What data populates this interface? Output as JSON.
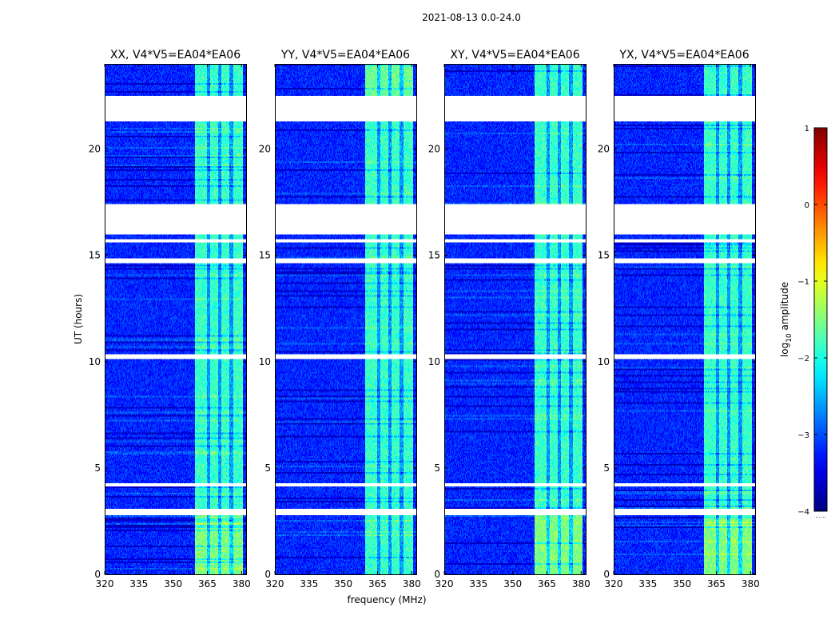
{
  "figure": {
    "suptitle": "2021-08-13 0.0-24.0",
    "xlabel": "frequency (MHz)",
    "ylabel": "UT (hours)",
    "colorbar_label_prefix": "log",
    "colorbar_label_sub": "10",
    "colorbar_label_suffix": " amplitude",
    "colorbar_footer": "......"
  },
  "chart_data": {
    "type": "heatmap",
    "panels": [
      {
        "title": "XX, V4*V5=EA04*EA06",
        "polarization": "XX",
        "show_ylabel": true,
        "show_xlabel": false
      },
      {
        "title": "YY, V4*V5=EA04*EA06",
        "polarization": "YY",
        "show_ylabel": false,
        "show_xlabel": true
      },
      {
        "title": "XY, V4*V5=EA04*EA06",
        "polarization": "XY",
        "show_ylabel": false,
        "show_xlabel": false
      },
      {
        "title": "YX, V4*V5=EA04*EA06",
        "polarization": "YX",
        "show_ylabel": false,
        "show_xlabel": false
      }
    ],
    "x_range": [
      320,
      382
    ],
    "x_ticks": [
      320,
      335,
      350,
      365,
      380
    ],
    "y_range": [
      0,
      24
    ],
    "y_ticks": [
      0,
      5,
      10,
      15,
      20
    ],
    "rfi_band_mhz": [
      359.5,
      380.5
    ],
    "rfi_subchannel_gaps_mhz": [
      365.5,
      370.5,
      375.5
    ],
    "flagged_ut_ranges": [
      [
        21.3,
        22.5
      ],
      [
        16.0,
        17.4
      ],
      [
        15.6,
        15.75
      ],
      [
        14.6,
        14.85
      ],
      [
        10.1,
        10.35
      ],
      [
        4.15,
        4.3
      ],
      [
        2.75,
        3.1
      ]
    ],
    "colorbar": {
      "label": "log10 amplitude",
      "range": [
        -4,
        1
      ],
      "ticks": [
        -4,
        -3,
        -2,
        -1,
        0,
        1
      ],
      "tick_labels": [
        "−4",
        "−3",
        "−2",
        "−1",
        "0",
        "1"
      ],
      "colormap": "jet"
    }
  },
  "colors": {
    "background": "#ffffff",
    "base_level": -3.2
  }
}
